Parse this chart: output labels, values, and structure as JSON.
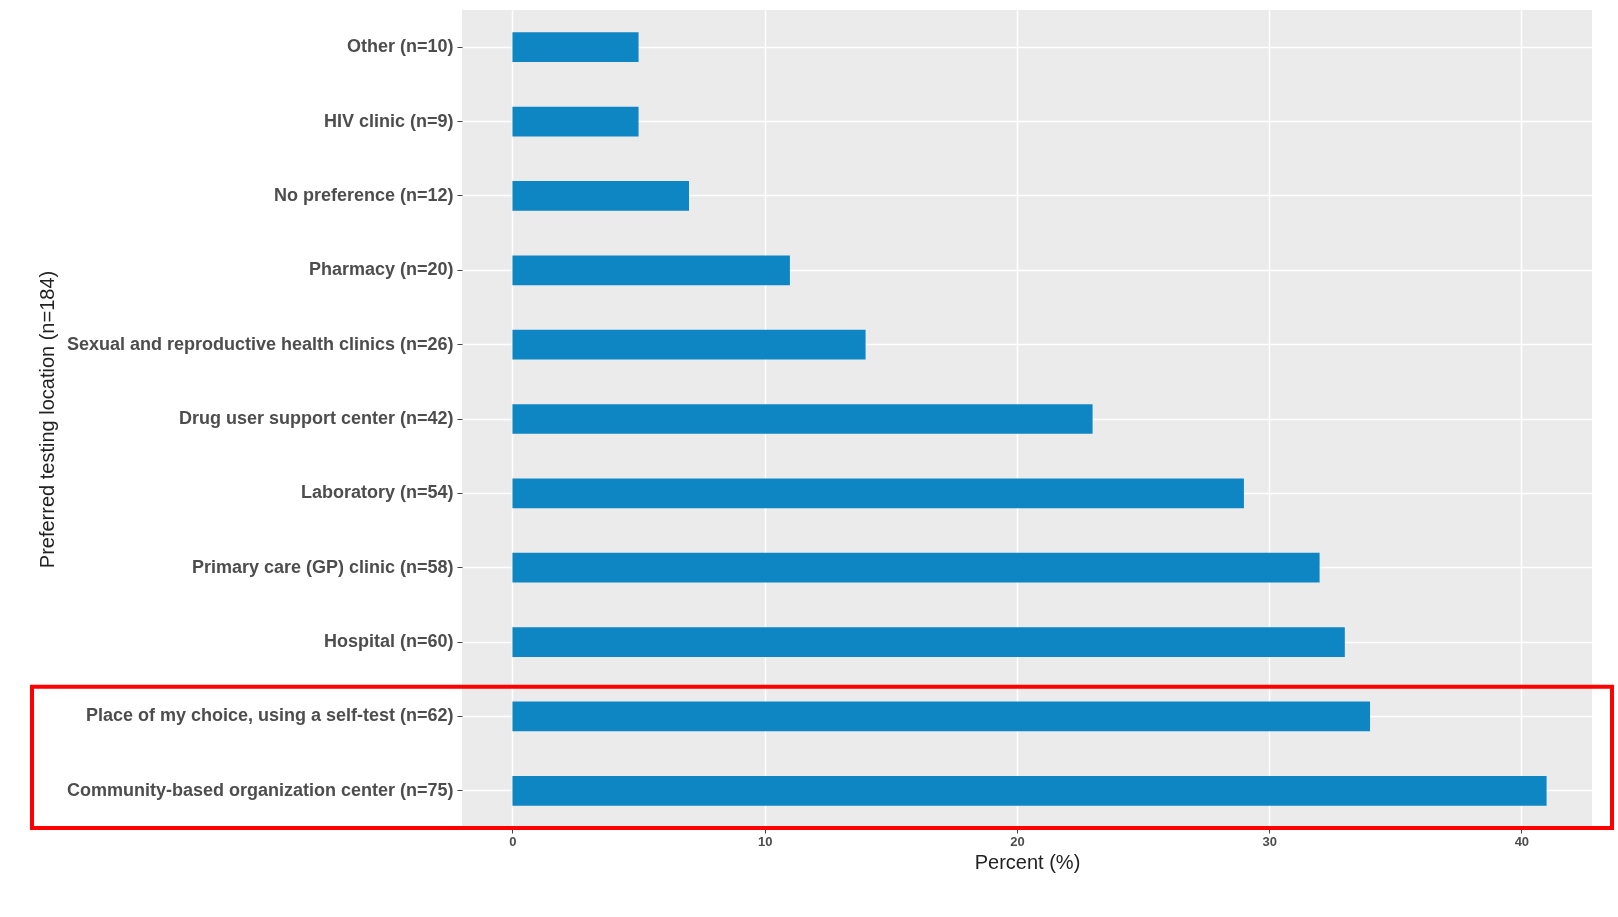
{
  "chart_data": {
    "type": "bar",
    "orientation": "horizontal",
    "xlabel": "Percent (%)",
    "ylabel": "Preferred testing location (n=184)",
    "categories": [
      "Other (n=10)",
      "HIV clinic (n=9)",
      "No preference (n=12)",
      "Pharmacy (n=20)",
      "Sexual and reproductive health clinics (n=26)",
      "Drug user support center (n=42)",
      "Laboratory (n=54)",
      "Primary care (GP) clinic (n=58)",
      "Hospital (n=60)",
      "Place of my choice, using a self-test (n=62)",
      "Community-based organization center (n=75)"
    ],
    "values": [
      5,
      5,
      7,
      11,
      14,
      23,
      29,
      32,
      33,
      34,
      41
    ],
    "color": "#0e86c4",
    "xlim": [
      -2,
      42.8
    ],
    "xticks": [
      0,
      10,
      20,
      30,
      40
    ],
    "grid": true
  }
}
